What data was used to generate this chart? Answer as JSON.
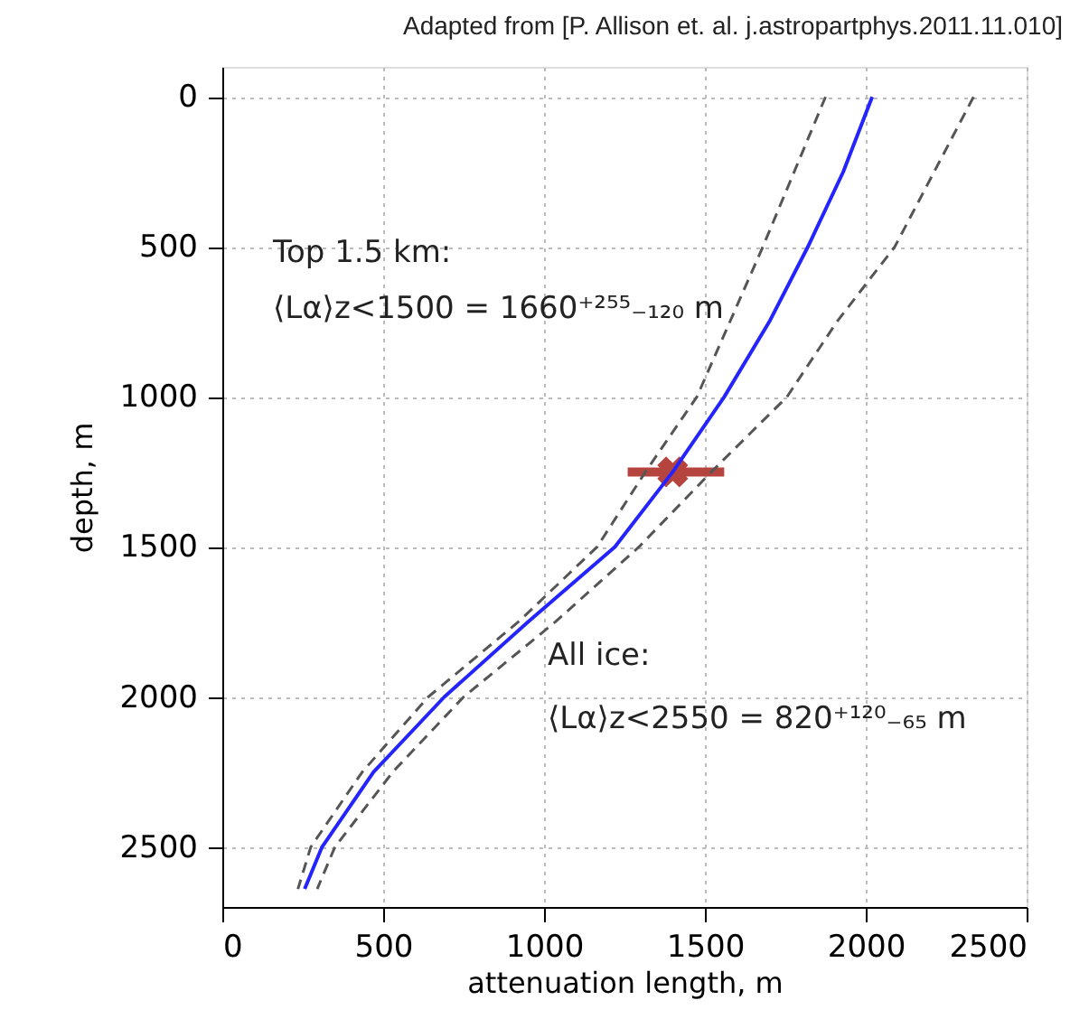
{
  "chart_data": {
    "type": "line",
    "xlabel": "attenuation length, m",
    "ylabel": "depth, m",
    "xlim": [
      0,
      2500
    ],
    "xticks": [
      0,
      500,
      1000,
      1500,
      2000,
      2500
    ],
    "ylim": [
      2700,
      -100
    ],
    "yticks": [
      0,
      500,
      1000,
      1500,
      2000,
      2500
    ],
    "grid": true,
    "series": [
      {
        "color": "#2424ff",
        "line_style": "solid",
        "x": [
          2020,
          1930,
          1820,
          1700,
          1560,
          1400,
          1220,
          950,
          690,
          470,
          310,
          256
        ],
        "values": [
          0,
          250,
          500,
          750,
          1000,
          1250,
          1500,
          1750,
          2000,
          2250,
          2500,
          2640
        ]
      },
      {
        "color": "#555555",
        "line_style": "dashed",
        "x": [
          1875,
          1680,
          1475,
          1315,
          1165,
          920,
          640,
          435,
          275,
          235
        ],
        "values": [
          0,
          500,
          1000,
          1250,
          1500,
          1750,
          2000,
          2250,
          2500,
          2640
        ]
      },
      {
        "color": "#555555",
        "line_style": "dashed",
        "x": [
          2335,
          2090,
          1910,
          1755,
          1520,
          1295,
          1035,
          750,
          530,
          350,
          295
        ],
        "values": [
          0,
          500,
          750,
          1000,
          1250,
          1500,
          1750,
          2000,
          2250,
          2500,
          2640
        ]
      },
      {
        "type": "scatter",
        "marker": "cross",
        "color": "#b5443f",
        "x": [
          1400
        ],
        "values": [
          1250
        ],
        "xerrors": [
          [
            1260,
            1560
          ]
        ]
      }
    ],
    "annotations": [
      "Adapted from [P. Allison et. al. j.astropartphys.2011.11.010]",
      "Top 1.5 km:",
      "⟨Lα⟩z<1500 = 1660⁺²⁵⁵₋₁₂₀ m",
      "All ice:",
      "⟨Lα⟩z<2550 = 820⁺¹²⁰₋₆₅ m"
    ]
  }
}
